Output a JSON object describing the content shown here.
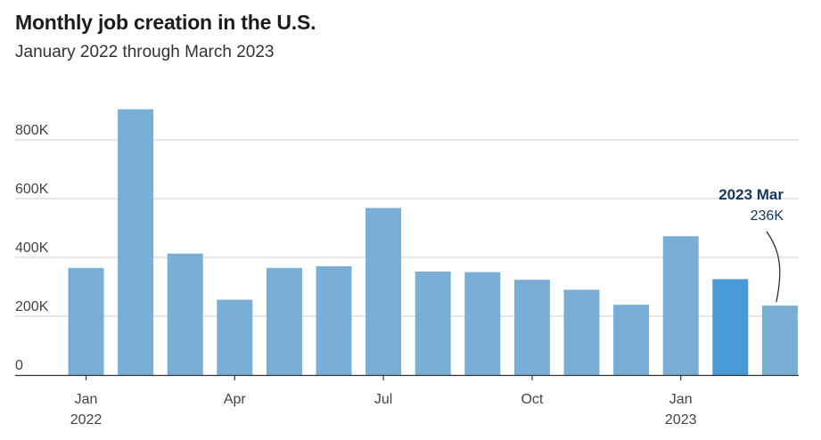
{
  "colors": {
    "bar": "#79aed6",
    "highlight": "#4a9ad8",
    "annotation_text": "#17365d",
    "grid": "#cfcfcf",
    "axis": "#333333"
  },
  "chart_data": {
    "type": "bar",
    "title": "Monthly job creation in the U.S.",
    "subtitle": "January 2022 through March 2023",
    "xlabel": "",
    "ylabel": "",
    "ylim": [
      0,
      900000
    ],
    "yticks": [
      {
        "value": 0,
        "label": "0"
      },
      {
        "value": 200000,
        "label": "200K"
      },
      {
        "value": 400000,
        "label": "400K"
      },
      {
        "value": 600000,
        "label": "600K"
      },
      {
        "value": 800000,
        "label": "800K"
      }
    ],
    "xticks": [
      {
        "index": 0,
        "label": "Jan",
        "sublabel": "2022"
      },
      {
        "index": 3,
        "label": "Apr",
        "sublabel": ""
      },
      {
        "index": 6,
        "label": "Jul",
        "sublabel": ""
      },
      {
        "index": 9,
        "label": "Oct",
        "sublabel": ""
      },
      {
        "index": 12,
        "label": "Jan",
        "sublabel": "2023"
      }
    ],
    "grid": true,
    "values": [
      364000,
      904000,
      413000,
      256000,
      364000,
      370000,
      568000,
      352000,
      350000,
      324000,
      290000,
      239000,
      472000,
      326000,
      236000
    ],
    "highlight_index": 13,
    "annotation": {
      "index": 14,
      "title": "2023 Mar",
      "value": "236K"
    }
  }
}
